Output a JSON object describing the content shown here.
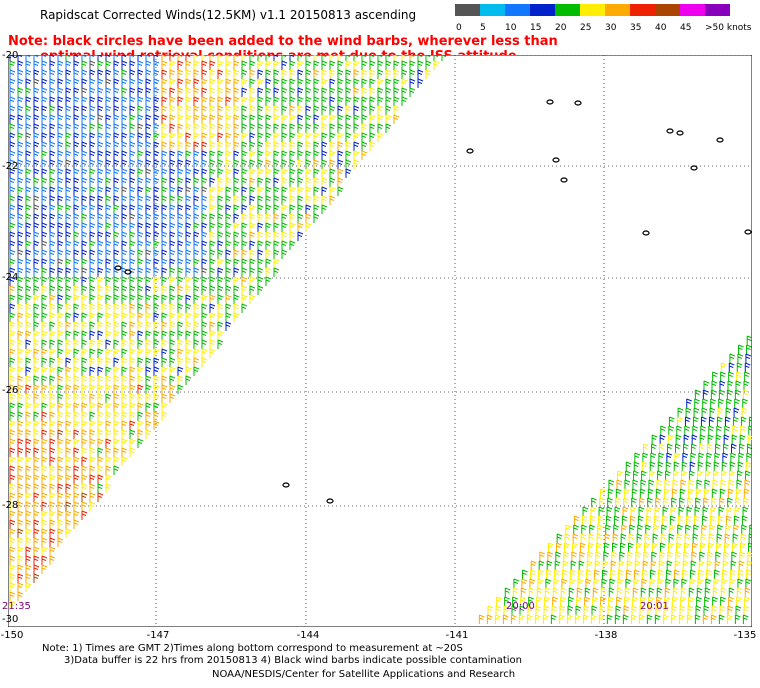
{
  "header": {
    "title": "Rapidscat Corrected Winds(12.5KM) v1.1 20150813 ascending"
  },
  "note": {
    "line1": "Note: black circles have been added to the wind barbs, wherever less than",
    "line2": "optimal wind retrieval conditions are met due to the ISS attitude changes."
  },
  "colorbar": {
    "ticks": [
      "0",
      "5",
      "10",
      "15",
      "20",
      "25",
      "30",
      "35",
      "40",
      "45",
      ">50 knots"
    ],
    "colors": [
      "#555555",
      "#00bbee",
      "#1177ff",
      "#0022cc",
      "#00bb00",
      "#ffee00",
      "#ffaa00",
      "#ee2200",
      "#aa4400",
      "#ee00ee",
      "#8800bb"
    ]
  },
  "axes": {
    "lon_labels": [
      "-150",
      "-147",
      "-144",
      "-141",
      "-138",
      "-135"
    ],
    "lat_labels": [
      "-20",
      "-22",
      "-24",
      "-26",
      "-28",
      "-30"
    ]
  },
  "time_labels": [
    "21:35",
    "20:00",
    "20:01"
  ],
  "footer": {
    "line1": "Note: 1) Times are GMT 2)Times along bottom correspond to measurement at ~20S",
    "line2": "3)Data buffer is 22 hrs from 20150813 4) Black wind barbs indicate possible contamination",
    "line3": "NOAA/NESDIS/Center for Satellite Applications and Research"
  }
}
